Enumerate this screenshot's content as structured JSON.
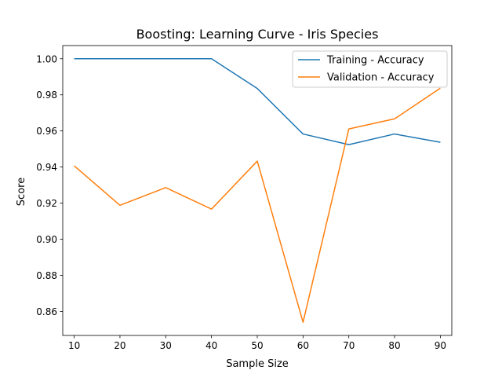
{
  "chart_data": {
    "type": "line",
    "title": "Boosting: Learning Curve - Iris Species",
    "xlabel": "Sample Size",
    "ylabel": "Score",
    "x": [
      10,
      20,
      30,
      40,
      50,
      60,
      70,
      80,
      90
    ],
    "xticks": [
      "10",
      "20",
      "30",
      "40",
      "50",
      "60",
      "70",
      "80",
      "90"
    ],
    "yticks": [
      "0.86",
      "0.88",
      "0.90",
      "0.92",
      "0.94",
      "0.96",
      "0.98",
      "1.00"
    ],
    "xlim": [
      7.5,
      92.5
    ],
    "ylim": [
      0.8467,
      1.0073
    ],
    "grid": false,
    "legend_position": "top-right",
    "series": [
      {
        "name": "Training - Accuracy",
        "color": "#1f77b4",
        "values": [
          1.0,
          1.0,
          1.0,
          1.0,
          0.9835,
          0.9583,
          0.9524,
          0.9583,
          0.9537
        ]
      },
      {
        "name": "Validation - Accuracy",
        "color": "#ff7f0e",
        "values": [
          0.9407,
          0.9188,
          0.9286,
          0.9167,
          0.9433,
          0.854,
          0.9611,
          0.9667,
          0.9837
        ]
      }
    ]
  }
}
